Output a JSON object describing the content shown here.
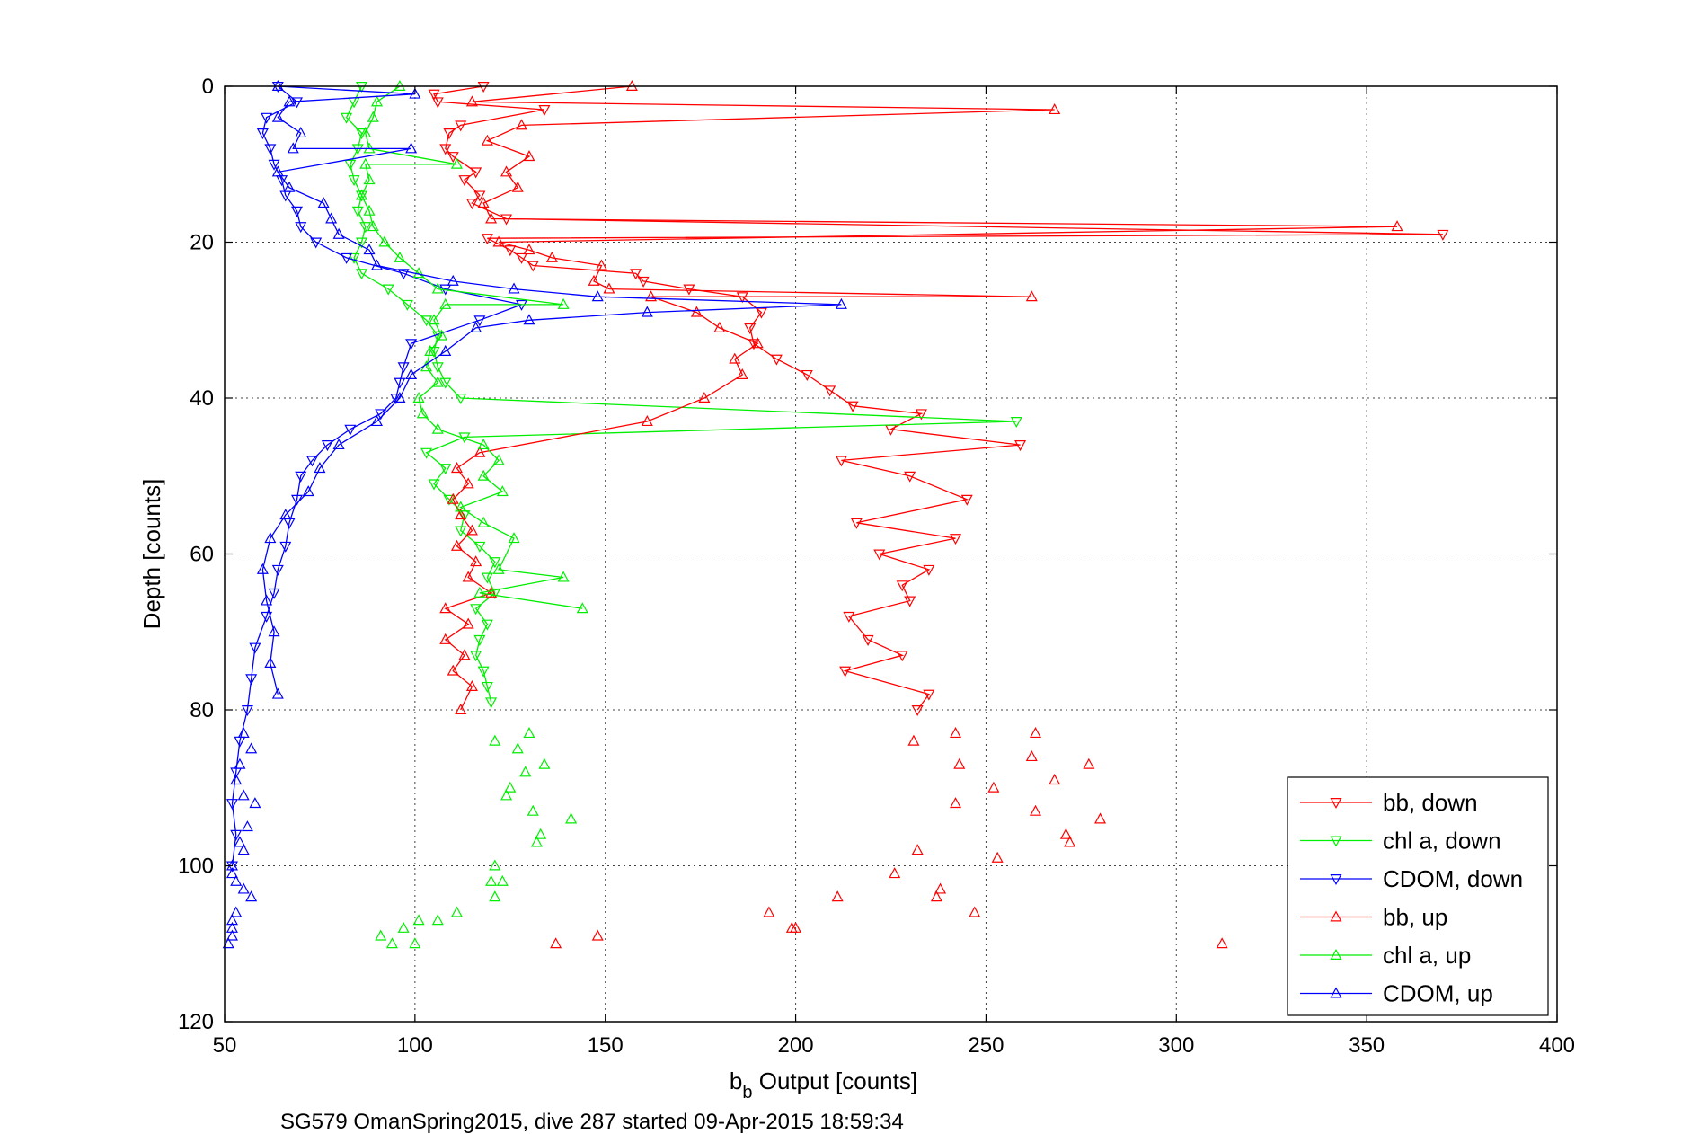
{
  "caption": "SG579 OmanSpring2015, dive 287 started 09-Apr-2015 18:59:34",
  "chart_data": {
    "type": "line",
    "xlabel_main": "b",
    "xlabel_sub": "b",
    "xlabel_rest": " Output [counts]",
    "ylabel": "Depth [counts]",
    "xlim": [
      50,
      400
    ],
    "ylim": [
      0,
      120
    ],
    "y_reversed": true,
    "xticks": [
      50,
      100,
      150,
      200,
      250,
      300,
      350,
      400
    ],
    "yticks": [
      0,
      20,
      40,
      60,
      80,
      100,
      120
    ],
    "grid": true,
    "legend_position": "bottom-right",
    "series": [
      {
        "name": "bb, down",
        "color": "#ff0000",
        "marker": "triangle-down",
        "points": [
          [
            118,
            0
          ],
          [
            105,
            1
          ],
          [
            106,
            2
          ],
          [
            134,
            3
          ],
          [
            112,
            5
          ],
          [
            109,
            6
          ],
          [
            108,
            8
          ],
          [
            110,
            9
          ],
          [
            116,
            11
          ],
          [
            113,
            12
          ],
          [
            117,
            14
          ],
          [
            115,
            15
          ],
          [
            124,
            17
          ],
          [
            370,
            19
          ],
          [
            119,
            19.5
          ],
          [
            125,
            21
          ],
          [
            128,
            22
          ],
          [
            131,
            23
          ],
          [
            158,
            24
          ],
          [
            160,
            25
          ],
          [
            172,
            26
          ],
          [
            186,
            27
          ],
          [
            191,
            29
          ],
          [
            188,
            31
          ],
          [
            189,
            33
          ],
          [
            195,
            35
          ],
          [
            203,
            37
          ],
          [
            209,
            39
          ],
          [
            215,
            41
          ],
          [
            233,
            42
          ],
          [
            225,
            44
          ],
          [
            259,
            46
          ],
          [
            212,
            48
          ],
          [
            230,
            50
          ],
          [
            245,
            53
          ],
          [
            216,
            56
          ],
          [
            242,
            58
          ],
          [
            222,
            60
          ],
          [
            235,
            62
          ],
          [
            228,
            64
          ],
          [
            230,
            66
          ],
          [
            214,
            68
          ],
          [
            219,
            71
          ],
          [
            228,
            73
          ],
          [
            213,
            75
          ],
          [
            235,
            78
          ],
          [
            232,
            80
          ]
        ]
      },
      {
        "name": "chl a, down",
        "color": "#00ee00",
        "marker": "triangle-down",
        "points": [
          [
            86,
            0
          ],
          [
            84,
            2
          ],
          [
            82,
            4
          ],
          [
            86,
            6
          ],
          [
            85,
            8
          ],
          [
            83,
            10
          ],
          [
            84,
            12
          ],
          [
            86,
            14
          ],
          [
            85,
            16
          ],
          [
            87,
            18
          ],
          [
            86,
            20
          ],
          [
            84,
            22
          ],
          [
            86,
            24
          ],
          [
            93,
            26
          ],
          [
            98,
            28
          ],
          [
            103,
            30
          ],
          [
            106,
            32
          ],
          [
            105,
            34
          ],
          [
            106,
            36
          ],
          [
            108,
            38
          ],
          [
            112,
            40
          ],
          [
            258,
            43
          ],
          [
            113,
            45
          ],
          [
            103,
            47
          ],
          [
            108,
            49
          ],
          [
            105,
            51
          ],
          [
            109,
            53
          ],
          [
            113,
            55
          ],
          [
            112,
            57
          ],
          [
            117,
            59
          ],
          [
            121,
            61
          ],
          [
            119,
            63
          ],
          [
            121,
            65
          ],
          [
            116,
            67
          ],
          [
            119,
            69
          ],
          [
            117,
            71
          ],
          [
            116,
            73
          ],
          [
            118,
            75
          ],
          [
            119,
            77
          ],
          [
            120,
            79
          ]
        ]
      },
      {
        "name": "CDOM, down",
        "color": "#0000ff",
        "marker": "triangle-down",
        "points": [
          [
            64,
            0
          ],
          [
            69,
            2
          ],
          [
            61,
            4
          ],
          [
            60,
            6
          ],
          [
            62,
            8
          ],
          [
            63,
            10
          ],
          [
            65,
            12
          ],
          [
            66,
            14
          ],
          [
            69,
            16
          ],
          [
            70,
            18
          ],
          [
            74,
            20
          ],
          [
            82,
            22
          ],
          [
            97,
            24
          ],
          [
            108,
            26
          ],
          [
            128,
            28
          ],
          [
            117,
            30
          ],
          [
            99,
            33
          ],
          [
            97,
            36
          ],
          [
            96,
            38
          ],
          [
            95,
            40
          ],
          [
            91,
            42
          ],
          [
            83,
            44
          ],
          [
            77,
            46
          ],
          [
            73,
            48
          ],
          [
            70,
            50
          ],
          [
            69,
            53
          ],
          [
            67,
            56
          ],
          [
            66,
            59
          ],
          [
            64,
            62
          ],
          [
            63,
            65
          ],
          [
            61,
            68
          ],
          [
            58,
            72
          ],
          [
            57,
            76
          ],
          [
            56,
            80
          ],
          [
            54,
            84
          ],
          [
            53,
            88
          ],
          [
            52,
            92
          ],
          [
            53,
            96
          ],
          [
            52,
            100
          ]
        ]
      },
      {
        "name": "bb, up",
        "color": "#ff0000",
        "marker": "triangle-up",
        "points": [
          [
            112,
            80
          ],
          [
            115,
            77
          ],
          [
            110,
            75
          ],
          [
            113,
            73
          ],
          [
            108,
            71
          ],
          [
            114,
            69
          ],
          [
            108,
            67
          ],
          [
            120,
            65
          ],
          [
            114,
            63
          ],
          [
            116,
            61
          ],
          [
            111,
            59
          ],
          [
            115,
            57
          ],
          [
            112,
            55
          ],
          [
            110,
            53
          ],
          [
            114,
            51
          ],
          [
            111,
            49
          ],
          [
            117,
            47
          ],
          [
            161,
            43
          ],
          [
            176,
            40
          ],
          [
            186,
            37
          ],
          [
            184,
            35
          ],
          [
            190,
            33
          ],
          [
            180,
            31
          ],
          [
            174,
            29
          ],
          [
            162,
            27
          ],
          [
            262,
            27
          ],
          [
            151,
            26
          ],
          [
            147,
            25
          ],
          [
            149,
            23
          ],
          [
            136,
            22
          ],
          [
            130,
            21
          ],
          [
            122,
            20
          ],
          [
            358,
            18
          ],
          [
            120,
            17
          ],
          [
            118,
            15
          ],
          [
            127,
            13
          ],
          [
            124,
            11
          ],
          [
            130,
            9
          ],
          [
            119,
            7
          ],
          [
            128,
            5
          ],
          [
            268,
            3
          ],
          [
            115,
            2
          ],
          [
            157,
            0
          ]
        ]
      },
      {
        "name": "chl a, up",
        "color": "#00ee00",
        "marker": "triangle-up",
        "points": [
          [
            144,
            67
          ],
          [
            117,
            65
          ],
          [
            139,
            63
          ],
          [
            122,
            62
          ],
          [
            126,
            58
          ],
          [
            118,
            56
          ],
          [
            112,
            54
          ],
          [
            123,
            52
          ],
          [
            118,
            50
          ],
          [
            122,
            48
          ],
          [
            118,
            46
          ],
          [
            106,
            44
          ],
          [
            102,
            42
          ],
          [
            101,
            40
          ],
          [
            106,
            38
          ],
          [
            103,
            36
          ],
          [
            104,
            34
          ],
          [
            107,
            32
          ],
          [
            105,
            30
          ],
          [
            108,
            28
          ],
          [
            139,
            28
          ],
          [
            106,
            26
          ],
          [
            101,
            24
          ],
          [
            96,
            22
          ],
          [
            92,
            20
          ],
          [
            89,
            18
          ],
          [
            88,
            16
          ],
          [
            86,
            14
          ],
          [
            88,
            12
          ],
          [
            87,
            10
          ],
          [
            111,
            10
          ],
          [
            88,
            8
          ],
          [
            87,
            6
          ],
          [
            89,
            4
          ],
          [
            90,
            2
          ],
          [
            96,
            0
          ]
        ]
      },
      {
        "name": "CDOM, up",
        "color": "#0000ff",
        "marker": "triangle-up",
        "points": [
          [
            64,
            78
          ],
          [
            62,
            74
          ],
          [
            63,
            70
          ],
          [
            61,
            66
          ],
          [
            60,
            62
          ],
          [
            62,
            58
          ],
          [
            66,
            55
          ],
          [
            72,
            52
          ],
          [
            75,
            49
          ],
          [
            80,
            46
          ],
          [
            90,
            43
          ],
          [
            96,
            40
          ],
          [
            99,
            37
          ],
          [
            108,
            34
          ],
          [
            116,
            31
          ],
          [
            130,
            30
          ],
          [
            161,
            29
          ],
          [
            212,
            28
          ],
          [
            148,
            27
          ],
          [
            126,
            26
          ],
          [
            110,
            25
          ],
          [
            90,
            23
          ],
          [
            88,
            21
          ],
          [
            80,
            19
          ],
          [
            78,
            17
          ],
          [
            76,
            15
          ],
          [
            67,
            13
          ],
          [
            64,
            11
          ],
          [
            99,
            8
          ],
          [
            68,
            8
          ],
          [
            70,
            6
          ],
          [
            64,
            4
          ],
          [
            67,
            2
          ],
          [
            100,
            1
          ],
          [
            64,
            0
          ]
        ]
      }
    ],
    "unconnected_points": {
      "bb, up": [
        [
          242,
          83
        ],
        [
          263,
          83
        ],
        [
          231,
          84
        ],
        [
          243,
          87
        ],
        [
          262,
          86
        ],
        [
          277,
          87
        ],
        [
          252,
          90
        ],
        [
          268,
          89
        ],
        [
          242,
          92
        ],
        [
          263,
          93
        ],
        [
          280,
          94
        ],
        [
          271,
          96
        ],
        [
          272,
          97
        ],
        [
          232,
          98
        ],
        [
          253,
          99
        ],
        [
          226,
          101
        ],
        [
          238,
          103
        ],
        [
          237,
          104
        ],
        [
          211,
          104
        ],
        [
          193,
          106
        ],
        [
          247,
          106
        ],
        [
          199,
          108
        ],
        [
          200,
          108
        ],
        [
          148,
          109
        ],
        [
          137,
          110
        ],
        [
          312,
          110
        ]
      ],
      "chl a, up": [
        [
          130,
          83
        ],
        [
          121,
          84
        ],
        [
          127,
          85
        ],
        [
          134,
          87
        ],
        [
          129,
          88
        ],
        [
          125,
          90
        ],
        [
          124,
          91
        ],
        [
          131,
          93
        ],
        [
          141,
          94
        ],
        [
          133,
          96
        ],
        [
          132,
          97
        ],
        [
          121,
          100
        ],
        [
          120,
          102
        ],
        [
          123,
          102
        ],
        [
          121,
          104
        ],
        [
          111,
          106
        ],
        [
          106,
          107
        ],
        [
          101,
          107
        ],
        [
          97,
          108
        ],
        [
          91,
          109
        ],
        [
          100,
          110
        ],
        [
          94,
          110
        ]
      ],
      "CDOM, up": [
        [
          55,
          83
        ],
        [
          57,
          85
        ],
        [
          54,
          87
        ],
        [
          53,
          89
        ],
        [
          55,
          91
        ],
        [
          58,
          92
        ],
        [
          56,
          95
        ],
        [
          54,
          97
        ],
        [
          55,
          98
        ],
        [
          52,
          100
        ],
        [
          52,
          101
        ],
        [
          53,
          102
        ],
        [
          55,
          103
        ],
        [
          57,
          104
        ],
        [
          53,
          106
        ],
        [
          52,
          107
        ],
        [
          52,
          108
        ],
        [
          52,
          109
        ],
        [
          51,
          110
        ]
      ]
    }
  }
}
